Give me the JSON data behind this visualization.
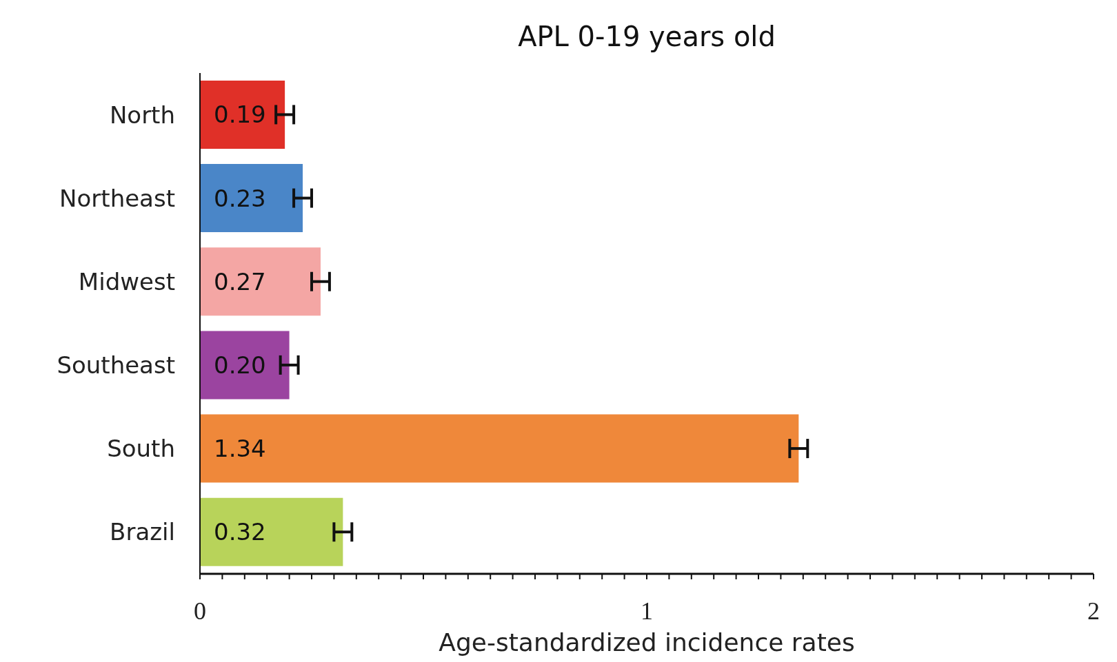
{
  "chart_data": {
    "type": "bar",
    "orientation": "horizontal",
    "title": "APL 0-19 years old",
    "xlabel": "Age-standardized incidence rates",
    "categories": [
      "North",
      "Northeast",
      "Midwest",
      "Southeast",
      "South",
      "Brazil"
    ],
    "values": [
      0.19,
      0.23,
      0.27,
      0.2,
      1.34,
      0.32
    ],
    "value_labels": [
      "0.19",
      "0.23",
      "0.27",
      "0.20",
      "1.34",
      "0.32"
    ],
    "errors": [
      0.02,
      0.02,
      0.02,
      0.02,
      0.02,
      0.02
    ],
    "colors": [
      "#e03028",
      "#4a86c8",
      "#f4a6a4",
      "#9b44a0",
      "#ef883a",
      "#b8d35a"
    ],
    "xlim": [
      0,
      2
    ],
    "xticks": [
      0,
      {
        "value": 0.05,
        "label": null
      },
      {
        "value": 0.1,
        "label": null
      },
      {
        "value": 0.15,
        "label": null
      },
      {
        "value": 0.2,
        "label": null
      },
      {
        "value": 0.25,
        "label": null
      },
      {
        "value": 0.3,
        "label": null
      },
      {
        "value": 0.35,
        "label": null
      },
      {
        "value": 0.4,
        "label": null
      },
      {
        "value": 0.45,
        "label": null
      },
      {
        "value": 0.5,
        "label": null
      },
      {
        "value": 0.55,
        "label": null
      },
      {
        "value": 0.6,
        "label": null
      },
      {
        "value": 0.65,
        "label": null
      },
      {
        "value": 0.7,
        "label": null
      },
      {
        "value": 0.75,
        "label": null
      },
      {
        "value": 0.8,
        "label": null
      },
      {
        "value": 0.85,
        "label": null
      },
      {
        "value": 0.9,
        "label": null
      },
      {
        "value": 0.95,
        "label": null
      },
      1,
      {
        "value": 1.05,
        "label": null
      },
      {
        "value": 1.1,
        "label": null
      },
      {
        "value": 1.15,
        "label": null
      },
      {
        "value": 1.2,
        "label": null
      },
      {
        "value": 1.25,
        "label": null
      },
      {
        "value": 1.3,
        "label": null
      },
      {
        "value": 1.35,
        "label": null
      },
      {
        "value": 1.4,
        "label": null
      },
      {
        "value": 1.45,
        "label": null
      },
      {
        "value": 1.5,
        "label": null
      },
      {
        "value": 1.55,
        "label": null
      },
      {
        "value": 1.6,
        "label": null
      },
      {
        "value": 1.65,
        "label": null
      },
      {
        "value": 1.7,
        "label": null
      },
      {
        "value": 1.75,
        "label": null
      },
      {
        "value": 1.8,
        "label": null
      },
      {
        "value": 1.85,
        "label": null
      },
      {
        "value": 1.9,
        "label": null
      },
      {
        "value": 1.95,
        "label": null
      },
      2
    ],
    "grid": false,
    "legend": false
  }
}
